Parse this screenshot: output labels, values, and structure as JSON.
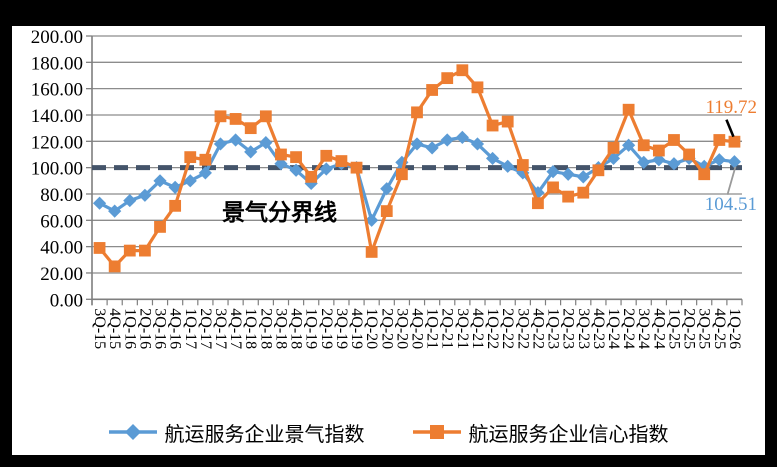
{
  "chart_data": {
    "type": "line",
    "title": "",
    "categories": [
      "3Q-15",
      "4Q-15",
      "1Q-16",
      "2Q-16",
      "3Q-16",
      "4Q-16",
      "1Q-17",
      "2Q-17",
      "3Q-17",
      "4Q-17",
      "1Q-18",
      "2Q-18",
      "3Q-18",
      "4Q-18",
      "1Q-19",
      "2Q-19",
      "3Q-19",
      "4Q-19",
      "1Q-20",
      "2Q-20",
      "3Q-20",
      "4Q-20",
      "1Q-21",
      "2Q-21",
      "3Q-21",
      "4Q-21",
      "1Q-22",
      "2Q-22",
      "3Q-22",
      "4Q-22",
      "1Q-23",
      "2Q-23",
      "3Q-23",
      "4Q-23",
      "1Q-24",
      "2Q-24",
      "3Q-24",
      "4Q-24",
      "1Q-25",
      "2Q-25",
      "3Q-25",
      "4Q-25",
      "1Q-26"
    ],
    "series": [
      {
        "name": "航运服务企业景气指数",
        "color": "#5B9BD5",
        "marker": "diamond",
        "values": [
          73,
          67,
          75,
          79,
          90,
          85,
          90,
          96,
          118,
          121,
          112,
          119,
          103,
          98,
          88,
          99,
          103,
          100,
          60,
          84,
          104,
          118,
          115,
          121,
          123,
          118,
          107,
          101,
          96,
          81,
          97,
          95,
          93,
          100,
          107,
          117,
          104,
          106,
          103,
          107,
          101,
          106,
          104.51
        ]
      },
      {
        "name": "航运服务企业信心指数",
        "color": "#ED7D31",
        "marker": "square",
        "values": [
          39,
          25,
          37,
          37,
          55,
          71,
          108,
          106,
          139,
          137,
          130,
          139,
          110,
          108,
          93,
          109,
          105,
          100,
          36,
          67,
          95,
          142,
          159,
          168,
          174,
          161,
          132,
          135,
          102,
          73,
          85,
          78,
          81,
          98,
          115,
          144,
          117,
          113,
          121,
          110,
          95,
          121,
          119.72
        ]
      }
    ],
    "ylim": [
      0,
      200
    ],
    "ytick_step": 20,
    "ytick_format": "0.00",
    "xlabel": "",
    "ylabel": "",
    "grid": true,
    "legend_position": "bottom",
    "reference_line": {
      "value": 100,
      "label": "景气分界线",
      "color": "#44546A"
    },
    "annotations": [
      {
        "text": "119.72",
        "series": 1,
        "point": "last",
        "color": "#ED7D31"
      },
      {
        "text": "104.51",
        "series": 0,
        "point": "last",
        "color": "#5B9BD5"
      }
    ]
  },
  "colors": {
    "background": "#000000",
    "plot_background": "#FFFFFF",
    "gridline": "#8C8C8C",
    "axis": "#7F7F7F",
    "text": "#000000"
  }
}
